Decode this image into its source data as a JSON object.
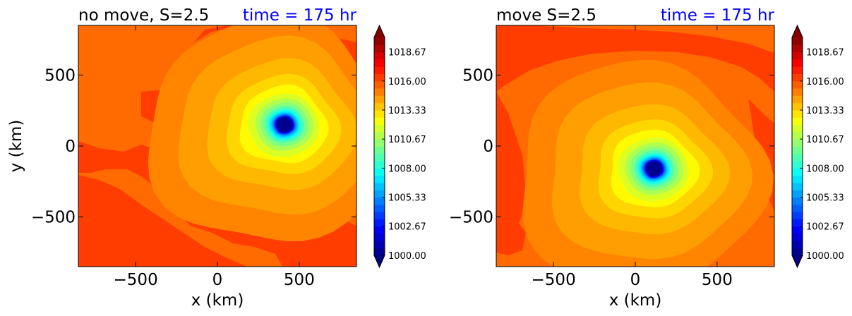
{
  "chart_data": [
    {
      "type": "heatmap",
      "title": "no move, S=2.5",
      "subtitle": "time = 175 hr",
      "xlabel": "x (km)",
      "ylabel": "y (km)",
      "xlim": [
        -850,
        850
      ],
      "ylim": [
        -850,
        850
      ],
      "xticks": [
        -500,
        0,
        500
      ],
      "yticks": [
        -500,
        0,
        500
      ],
      "xtick_labels": [
        "−500",
        "0",
        "500"
      ],
      "ytick_labels": [
        "−500",
        "0",
        "500"
      ],
      "vortex_center": [
        410,
        150
      ],
      "minimum_pressure": 1000.0,
      "colorbar": {
        "min": 1000.0,
        "max": 1020.0,
        "tick_values": [
          1000.0,
          1002.67,
          1005.33,
          1008.0,
          1010.67,
          1013.33,
          1016.0,
          1018.67
        ],
        "tick_labels": [
          "1000.00",
          "1002.67",
          "1005.33",
          "1008.00",
          "1010.67",
          "1013.33",
          "1016.00",
          "1018.67"
        ],
        "extend": "both"
      }
    },
    {
      "type": "heatmap",
      "title": "move S=2.5",
      "subtitle": "time = 175 hr",
      "xlabel": "x (km)",
      "ylabel": "",
      "xlim": [
        -850,
        850
      ],
      "ylim": [
        -850,
        850
      ],
      "xticks": [
        -500,
        0,
        500
      ],
      "yticks": [
        -500,
        0,
        500
      ],
      "xtick_labels": [
        "−500",
        "0",
        "500"
      ],
      "ytick_labels": [
        "−500",
        "0",
        "500"
      ],
      "vortex_center": [
        115,
        -160
      ],
      "minimum_pressure": 1000.0,
      "colorbar": {
        "min": 1000.0,
        "max": 1020.0,
        "tick_values": [
          1000.0,
          1002.67,
          1005.33,
          1008.0,
          1010.67,
          1013.33,
          1016.0,
          1018.67
        ],
        "tick_labels": [
          "1000.00",
          "1002.67",
          "1005.33",
          "1008.00",
          "1010.67",
          "1013.33",
          "1016.00",
          "1018.67"
        ],
        "extend": "both"
      }
    }
  ]
}
